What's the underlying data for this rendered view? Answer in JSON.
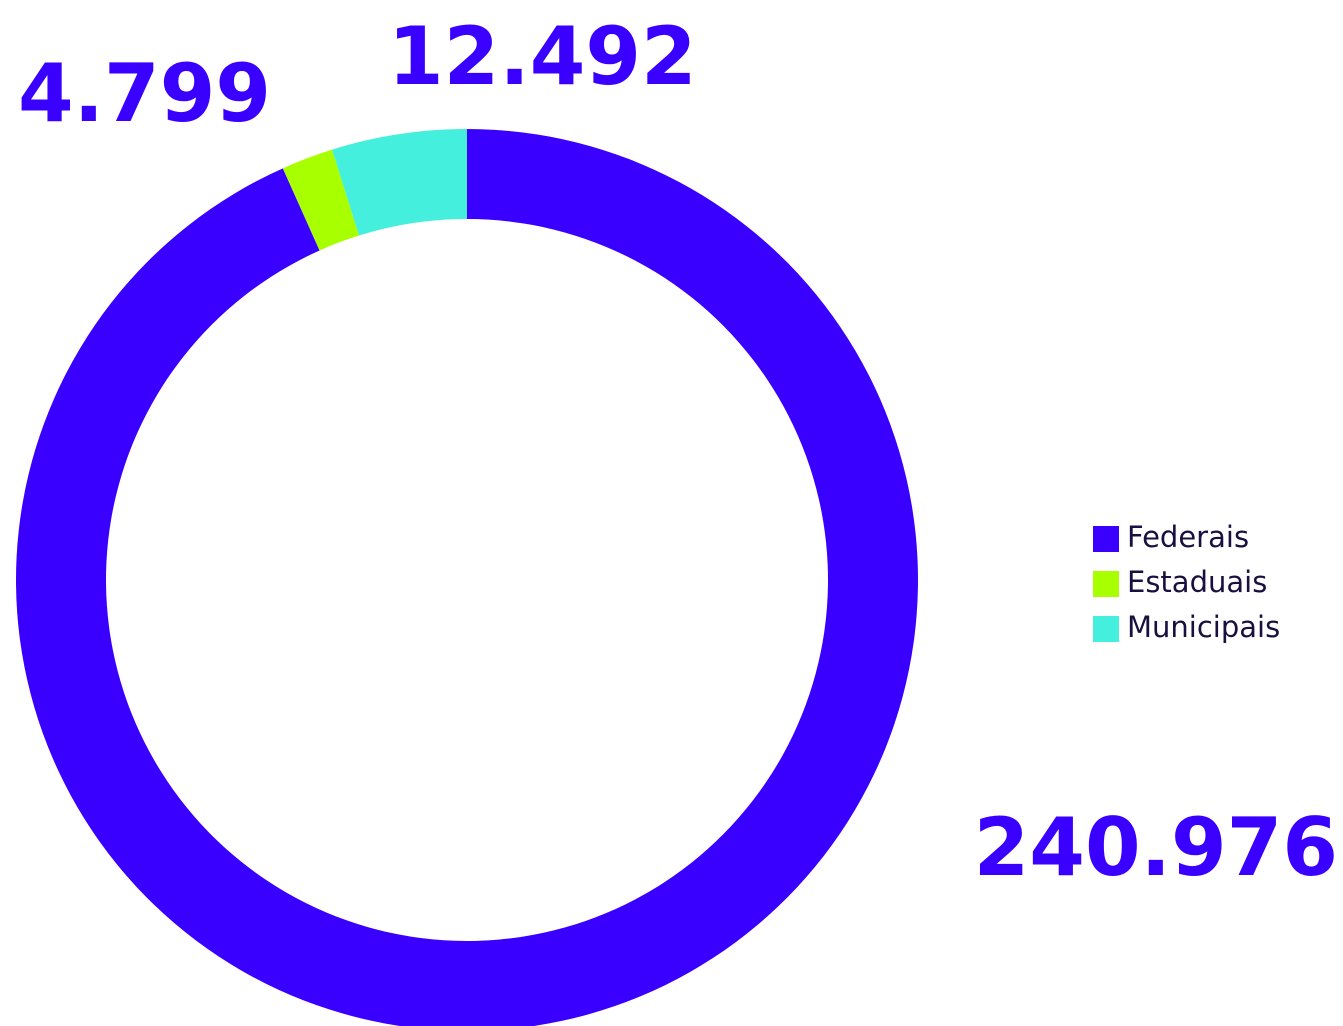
{
  "chart_data": {
    "type": "donut",
    "categories": [
      "Federais",
      "Estaduais",
      "Municipais"
    ],
    "values": [
      240976,
      4799,
      12492
    ],
    "value_labels": [
      "240.976",
      "4.799",
      "12.492"
    ],
    "colors": [
      "#3a00ff",
      "#a8ff00",
      "#44efdd"
    ],
    "legend": "right"
  }
}
